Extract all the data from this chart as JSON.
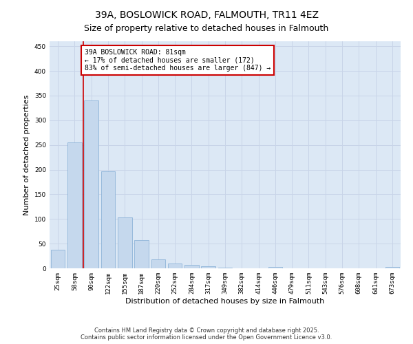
{
  "title": "39A, BOSLOWICK ROAD, FALMOUTH, TR11 4EZ",
  "subtitle": "Size of property relative to detached houses in Falmouth",
  "xlabel": "Distribution of detached houses by size in Falmouth",
  "ylabel": "Number of detached properties",
  "categories": [
    "25sqm",
    "58sqm",
    "90sqm",
    "122sqm",
    "155sqm",
    "187sqm",
    "220sqm",
    "252sqm",
    "284sqm",
    "317sqm",
    "349sqm",
    "382sqm",
    "414sqm",
    "446sqm",
    "479sqm",
    "511sqm",
    "543sqm",
    "576sqm",
    "608sqm",
    "641sqm",
    "673sqm"
  ],
  "values": [
    37,
    255,
    340,
    197,
    103,
    57,
    18,
    10,
    7,
    4,
    1,
    0,
    0,
    3,
    0,
    0,
    0,
    0,
    0,
    0,
    3
  ],
  "bar_color": "#c5d8ed",
  "bar_edge_color": "#8fb4d9",
  "grid_color": "#c8d4e8",
  "background_color": "#dce8f5",
  "property_line_color": "#cc0000",
  "annotation_text": "39A BOSLOWICK ROAD: 81sqm\n← 17% of detached houses are smaller (172)\n83% of semi-detached houses are larger (847) →",
  "annotation_box_color": "#cc0000",
  "ylim": [
    0,
    460
  ],
  "yticks": [
    0,
    50,
    100,
    150,
    200,
    250,
    300,
    350,
    400,
    450
  ],
  "footer_text": "Contains HM Land Registry data © Crown copyright and database right 2025.\nContains public sector information licensed under the Open Government Licence v3.0.",
  "title_fontsize": 10,
  "subtitle_fontsize": 9,
  "axis_label_fontsize": 8,
  "tick_fontsize": 6.5,
  "annotation_fontsize": 7,
  "footer_fontsize": 6
}
